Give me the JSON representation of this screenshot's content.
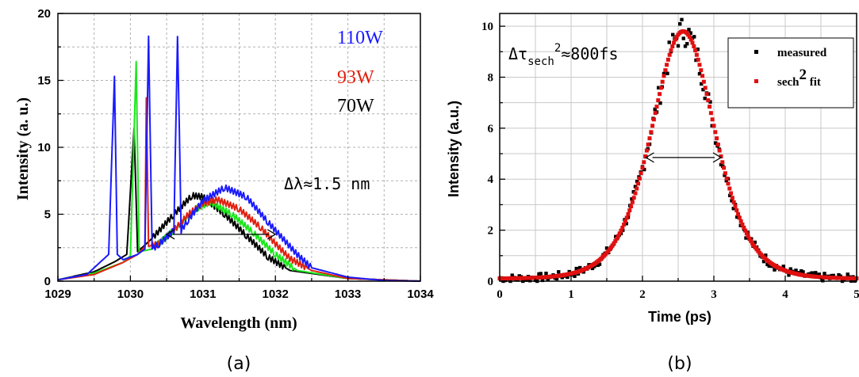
{
  "chart_data": [
    {
      "panel": "(a)",
      "type": "line",
      "xlabel": "Wavelength (nm)",
      "ylabel": "Intensity (a. u.)",
      "xlim": [
        1029,
        1034
      ],
      "ylim": [
        0,
        20
      ],
      "xticks": [
        "1029",
        "1030",
        "1031",
        "1032",
        "1033",
        "1034"
      ],
      "yticks": [
        "0",
        "5",
        "10",
        "15",
        "20"
      ],
      "grid": true,
      "series": [
        {
          "name": "110W",
          "color": "#1a1aff",
          "x": [
            1029.0,
            1029.4,
            1029.7,
            1029.78,
            1029.82,
            1029.9,
            1030.1,
            1030.2,
            1030.25,
            1030.3,
            1030.4,
            1030.6,
            1030.65,
            1030.7,
            1030.8,
            1031.0,
            1031.3,
            1031.6,
            1031.9,
            1032.1,
            1032.3,
            1032.5,
            1033.0,
            1033.5,
            1034.0
          ],
          "y": [
            0.1,
            0.5,
            2.0,
            15.3,
            2.0,
            1.6,
            2.0,
            2.4,
            18.3,
            2.4,
            2.8,
            3.8,
            18.5,
            3.8,
            4.6,
            6.0,
            7.0,
            6.3,
            4.4,
            3.2,
            2.0,
            1.0,
            0.3,
            0.05,
            0.0
          ]
        },
        {
          "name": "93W",
          "color": "#e02010",
          "x": [
            1029.0,
            1029.5,
            1029.9,
            1030.1,
            1030.2,
            1030.22,
            1030.25,
            1030.4,
            1030.6,
            1030.8,
            1031.0,
            1031.2,
            1031.5,
            1031.8,
            1032.0,
            1032.2,
            1032.5,
            1033.0,
            1034.0
          ],
          "y": [
            0.1,
            0.5,
            1.4,
            2.0,
            2.6,
            13.7,
            2.6,
            2.8,
            3.8,
            5.0,
            5.8,
            6.1,
            5.4,
            4.0,
            2.8,
            1.7,
            0.8,
            0.2,
            0.0
          ]
        },
        {
          "name": "",
          "color": "#19e619",
          "x": [
            1029.0,
            1029.5,
            1029.9,
            1030.0,
            1030.08,
            1030.12,
            1030.3,
            1030.6,
            1030.9,
            1031.1,
            1031.4,
            1031.7,
            1032.0,
            1032.3,
            1033.0,
            1034.0
          ],
          "y": [
            0.1,
            0.6,
            1.4,
            1.9,
            16.4,
            2.2,
            2.4,
            3.8,
            5.4,
            5.9,
            5.0,
            3.6,
            2.0,
            0.8,
            0.2,
            0.0
          ]
        },
        {
          "name": "70W",
          "color": "#000000",
          "x": [
            1029.0,
            1029.5,
            1029.8,
            1029.95,
            1030.05,
            1030.1,
            1030.3,
            1030.6,
            1030.85,
            1031.0,
            1031.3,
            1031.6,
            1031.9,
            1032.2,
            1033.0,
            1034.0
          ],
          "y": [
            0.1,
            0.7,
            1.5,
            2.0,
            11.4,
            2.2,
            3.2,
            5.0,
            6.4,
            6.3,
            5.0,
            3.4,
            1.8,
            0.8,
            0.2,
            0.0
          ]
        }
      ],
      "legend_text": [
        {
          "text": "110W",
          "color": "#1a1aff"
        },
        {
          "text": "93W",
          "color": "#e02010"
        },
        {
          "text": "70W",
          "color": "#000000"
        }
      ],
      "annotation": "Δλ≈1.5 nm",
      "fwhm_arrow": {
        "x0": 1030.5,
        "x1": 1032.0,
        "y": 3.5
      }
    },
    {
      "panel": "(b)",
      "type": "scatter",
      "xlabel": "Time (ps)",
      "ylabel": "Intensity (a.u.)",
      "xlim": [
        0,
        5
      ],
      "ylim": [
        0,
        10.5
      ],
      "xticks": [
        "0",
        "1",
        "2",
        "3",
        "4",
        "5"
      ],
      "yticks": [
        "0",
        "2",
        "4",
        "6",
        "8",
        "10"
      ],
      "grid": true,
      "series": [
        {
          "name": "measured",
          "color": "#000000",
          "marker": "square"
        },
        {
          "name": "sech2 fit",
          "color": "#e01010",
          "marker": "square",
          "model": {
            "amplitude": 9.7,
            "center": 2.57,
            "fwhm": 1.05,
            "baseline": 0.1
          }
        }
      ],
      "legend": {
        "position": "top-right"
      },
      "annotation": {
        "prefix": "Δτ",
        "sub": "sech",
        "sup": "2",
        "suffix": "≈800fs"
      },
      "fwhm_arrow": {
        "x0": 2.05,
        "x1": 3.1,
        "y": 4.85
      }
    }
  ],
  "panel_labels": {
    "a": "(a)",
    "b": "(b)"
  },
  "legend_b": {
    "measured": "measured",
    "fit_prefix": "sech",
    "fit_sup": "2",
    "fit_suffix": " fit"
  },
  "annotation_a": "Δλ≈1.5 nm",
  "annotation_b": {
    "prefix": "Δτ",
    "sub": "sech",
    "sup": "2",
    "suffix": "≈800fs"
  }
}
